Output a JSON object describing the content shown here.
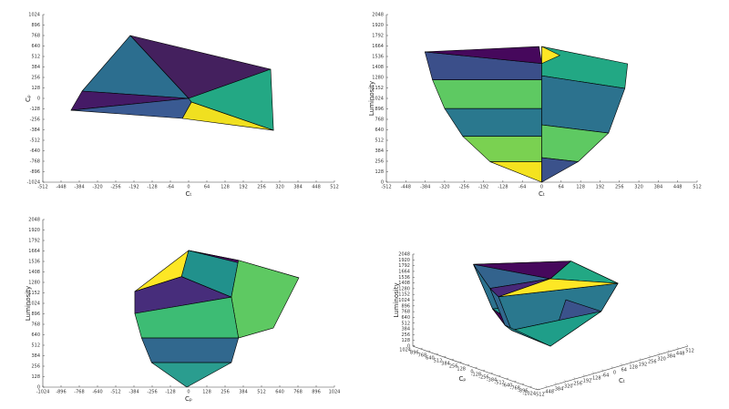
{
  "chart_data": [
    {
      "type": "patch",
      "xlabel": "Cₜ",
      "ylabel": "Cₚ",
      "xlim": [
        -512,
        512
      ],
      "ylim": [
        -1024,
        1024
      ],
      "xticks": [
        -512,
        -448,
        -384,
        -320,
        -256,
        -192,
        -128,
        -64,
        0,
        64,
        128,
        192,
        256,
        320,
        384,
        448,
        512
      ],
      "yticks": [
        -1024,
        -896,
        -768,
        -640,
        -512,
        -384,
        -256,
        -128,
        0,
        128,
        256,
        384,
        512,
        640,
        768,
        896,
        1024
      ],
      "faces": [
        {
          "color": "#44205e",
          "points": [
            [
              -205,
              768
            ],
            [
              288,
              356
            ],
            [
              0,
              0
            ]
          ]
        },
        {
          "color": "#2c6e8f",
          "points": [
            [
              -205,
              768
            ],
            [
              0,
              0
            ],
            [
              -374,
              89
            ]
          ]
        },
        {
          "color": "#451a66",
          "points": [
            [
              -374,
              89
            ],
            [
              0,
              0
            ],
            [
              -413,
              -145
            ]
          ]
        },
        {
          "color": "#3a5a92",
          "points": [
            [
              -413,
              -145
            ],
            [
              0,
              0
            ],
            [
              10,
              -45
            ],
            [
              -22,
              -245
            ]
          ]
        },
        {
          "color": "#23a884",
          "points": [
            [
              0,
              0
            ],
            [
              288,
              356
            ],
            [
              298,
              -390
            ],
            [
              10,
              -45
            ]
          ]
        },
        {
          "color": "#f0e020",
          "points": [
            [
              10,
              -45
            ],
            [
              298,
              -390
            ],
            [
              -22,
              -245
            ]
          ]
        }
      ]
    },
    {
      "type": "patch",
      "xlabel": "Cₜ",
      "ylabel": "Luminosity",
      "xlim": [
        -512,
        512
      ],
      "ylim": [
        0,
        2048
      ],
      "xticks": [
        -512,
        -448,
        -384,
        -320,
        -256,
        -192,
        -128,
        -64,
        0,
        64,
        128,
        192,
        256,
        320,
        384,
        448,
        512
      ],
      "yticks": [
        0,
        128,
        256,
        384,
        512,
        640,
        768,
        896,
        1024,
        1152,
        1280,
        1408,
        1536,
        1664,
        1792,
        1920,
        2048
      ],
      "faces": [
        {
          "color": "#3b4f8a",
          "points": [
            [
              -385,
              1592
            ],
            [
              0,
              1450
            ],
            [
              0,
              1250
            ],
            [
              -360,
              1250
            ]
          ]
        },
        {
          "color": "#5ec962",
          "points": [
            [
              -360,
              1250
            ],
            [
              0,
              1250
            ],
            [
              0,
              900
            ],
            [
              -320,
              900
            ]
          ]
        },
        {
          "color": "#2a788e",
          "points": [
            [
              -320,
              900
            ],
            [
              0,
              900
            ],
            [
              0,
              560
            ],
            [
              -260,
              560
            ]
          ]
        },
        {
          "color": "#7ad151",
          "points": [
            [
              -260,
              560
            ],
            [
              0,
              560
            ],
            [
              0,
              250
            ],
            [
              -170,
              250
            ]
          ]
        },
        {
          "color": "#f4e31f",
          "points": [
            [
              -170,
              250
            ],
            [
              0,
              250
            ],
            [
              0,
              0
            ]
          ]
        },
        {
          "color": "#46085c",
          "points": [
            [
              -385,
              1592
            ],
            [
              -9,
              1658
            ],
            [
              0,
              1450
            ]
          ]
        },
        {
          "color": "#22a884",
          "points": [
            [
              0,
              1658
            ],
            [
              283,
              1447
            ],
            [
              274,
              1146
            ],
            [
              0,
              1300
            ]
          ]
        },
        {
          "color": "#fde725",
          "points": [
            [
              0,
              1658
            ],
            [
              60,
              1550
            ],
            [
              0,
              1450
            ]
          ]
        },
        {
          "color": "#2c728e",
          "points": [
            [
              0,
              1300
            ],
            [
              274,
              1146
            ],
            [
              220,
              600
            ],
            [
              0,
              700
            ]
          ]
        },
        {
          "color": "#5ec962",
          "points": [
            [
              0,
              700
            ],
            [
              220,
              600
            ],
            [
              120,
              250
            ],
            [
              0,
              300
            ]
          ]
        },
        {
          "color": "#3b528b",
          "points": [
            [
              0,
              300
            ],
            [
              120,
              250
            ],
            [
              0,
              0
            ]
          ]
        }
      ]
    },
    {
      "type": "patch",
      "xlabel": "Cₚ",
      "ylabel": "Luminosity",
      "xlim": [
        -1024,
        1024
      ],
      "ylim": [
        0,
        2048
      ],
      "xticks": [
        -1024,
        -896,
        -768,
        -640,
        -512,
        -384,
        -256,
        -128,
        0,
        128,
        256,
        384,
        512,
        640,
        768,
        896,
        1024
      ],
      "yticks": [
        0,
        128,
        256,
        384,
        512,
        640,
        768,
        896,
        1024,
        1152,
        1280,
        1408,
        1536,
        1664,
        1792,
        1920,
        2048
      ],
      "faces": [
        {
          "color": "#fde725",
          "points": [
            [
              -378,
              1169
            ],
            [
              0,
              1670
            ],
            [
              -50,
              1350
            ]
          ]
        },
        {
          "color": "#21918c",
          "points": [
            [
              0,
              1670
            ],
            [
              350,
              1550
            ],
            [
              300,
              1100
            ],
            [
              -50,
              1350
            ]
          ]
        },
        {
          "color": "#46085c",
          "points": [
            [
              0,
              1670
            ],
            [
              774,
              1336
            ],
            [
              350,
              1550
            ]
          ]
        },
        {
          "color": "#5ec962",
          "points": [
            [
              350,
              1550
            ],
            [
              774,
              1336
            ],
            [
              595,
              723
            ],
            [
              350,
              600
            ],
            [
              300,
              1100
            ]
          ]
        },
        {
          "color": "#472d7b",
          "points": [
            [
              -378,
              1169
            ],
            [
              -50,
              1350
            ],
            [
              300,
              1100
            ],
            [
              -378,
              900
            ]
          ]
        },
        {
          "color": "#3dbc74",
          "points": [
            [
              -378,
              900
            ],
            [
              300,
              1100
            ],
            [
              350,
              600
            ],
            [
              -330,
              600
            ]
          ]
        },
        {
          "color": "#31688e",
          "points": [
            [
              -330,
              600
            ],
            [
              350,
              600
            ],
            [
              300,
              300
            ],
            [
              -260,
              300
            ]
          ]
        },
        {
          "color": "#2a9d8f",
          "points": [
            [
              -260,
              300
            ],
            [
              300,
              300
            ],
            [
              -13,
              0
            ]
          ]
        }
      ]
    },
    {
      "type": "patch3",
      "xlabel": "Cₜ",
      "ylabel": "Cₚ",
      "zlabel": "Luminosity",
      "xlim": [
        -512,
        512
      ],
      "ylim": [
        -1024,
        1024
      ],
      "zlim": [
        0,
        2048
      ],
      "xticks": [
        -512,
        -448,
        -384,
        -320,
        -256,
        -192,
        -128,
        -64,
        0,
        64,
        128,
        192,
        256,
        320,
        384,
        448,
        512
      ],
      "yticks": [
        -1024,
        -896,
        -768,
        -640,
        -512,
        -384,
        -256,
        -128,
        0,
        128,
        256,
        384,
        512,
        640,
        768,
        896,
        1024
      ],
      "zticks": [
        0,
        128,
        256,
        384,
        512,
        640,
        768,
        896,
        1024,
        1152,
        1280,
        1408,
        1536,
        1664,
        1792,
        1920,
        2048
      ],
      "faces": [
        {
          "color": "#3b528b",
          "points": [
            [
              -205,
              768,
              1650
            ],
            [
              288,
              356,
              1450
            ],
            [
              216,
              267,
              700
            ],
            [
              -154,
              576,
              700
            ]
          ]
        },
        {
          "color": "#2c728e",
          "points": [
            [
              -374,
              89,
              1600
            ],
            [
              -205,
              768,
              1650
            ],
            [
              -154,
              576,
              700
            ],
            [
              -281,
              67,
              700
            ]
          ]
        },
        {
          "color": "#21918c",
          "points": [
            [
              -154,
              576,
              700
            ],
            [
              216,
              267,
              700
            ],
            [
              0,
              0,
              0
            ]
          ]
        },
        {
          "color": "#440154",
          "points": [
            [
              -281,
              67,
              700
            ],
            [
              -154,
              576,
              700
            ],
            [
              0,
              0,
              0
            ]
          ]
        },
        {
          "color": "#5ec962",
          "points": [
            [
              288,
              356,
              1450
            ],
            [
              298,
              -390,
              1300
            ],
            [
              224,
              -293,
              700
            ],
            [
              216,
              267,
              700
            ]
          ]
        },
        {
          "color": "#31688e",
          "points": [
            [
              -413,
              -145,
              1560
            ],
            [
              -374,
              89,
              1600
            ],
            [
              -281,
              67,
              700
            ],
            [
              -310,
              -109,
              700
            ]
          ]
        },
        {
          "color": "#2a788e",
          "points": [
            [
              298,
              -390,
              1300
            ],
            [
              -413,
              -145,
              1560
            ],
            [
              -310,
              -109,
              700
            ],
            [
              224,
              -293,
              700
            ]
          ]
        },
        {
          "color": "#3b528b",
          "points": [
            [
              216,
              267,
              700
            ],
            [
              224,
              -293,
              700
            ],
            [
              0,
              0,
              0
            ]
          ]
        },
        {
          "color": "#1f9e89",
          "points": [
            [
              224,
              -293,
              700
            ],
            [
              -310,
              -109,
              700
            ],
            [
              0,
              0,
              0
            ]
          ]
        },
        {
          "color": "#26828e",
          "points": [
            [
              -310,
              -109,
              700
            ],
            [
              -281,
              67,
              700
            ],
            [
              0,
              0,
              0
            ]
          ]
        },
        {
          "color": "#46085c",
          "points": [
            [
              -205,
              768,
              1650
            ],
            [
              288,
              356,
              1450
            ],
            [
              0,
              0,
              1500
            ]
          ]
        },
        {
          "color": "#33638d",
          "points": [
            [
              -205,
              768,
              1650
            ],
            [
              0,
              0,
              1500
            ],
            [
              -374,
              89,
              1600
            ]
          ]
        },
        {
          "color": "#482878",
          "points": [
            [
              -374,
              89,
              1600
            ],
            [
              0,
              0,
              1500
            ],
            [
              -413,
              -145,
              1560
            ]
          ]
        },
        {
          "color": "#22a884",
          "points": [
            [
              288,
              356,
              1450
            ],
            [
              298,
              -390,
              1300
            ],
            [
              0,
              0,
              1500
            ]
          ]
        },
        {
          "color": "#fde725",
          "points": [
            [
              298,
              -390,
              1300
            ],
            [
              -413,
              -145,
              1560
            ],
            [
              0,
              0,
              1500
            ]
          ]
        }
      ]
    }
  ]
}
